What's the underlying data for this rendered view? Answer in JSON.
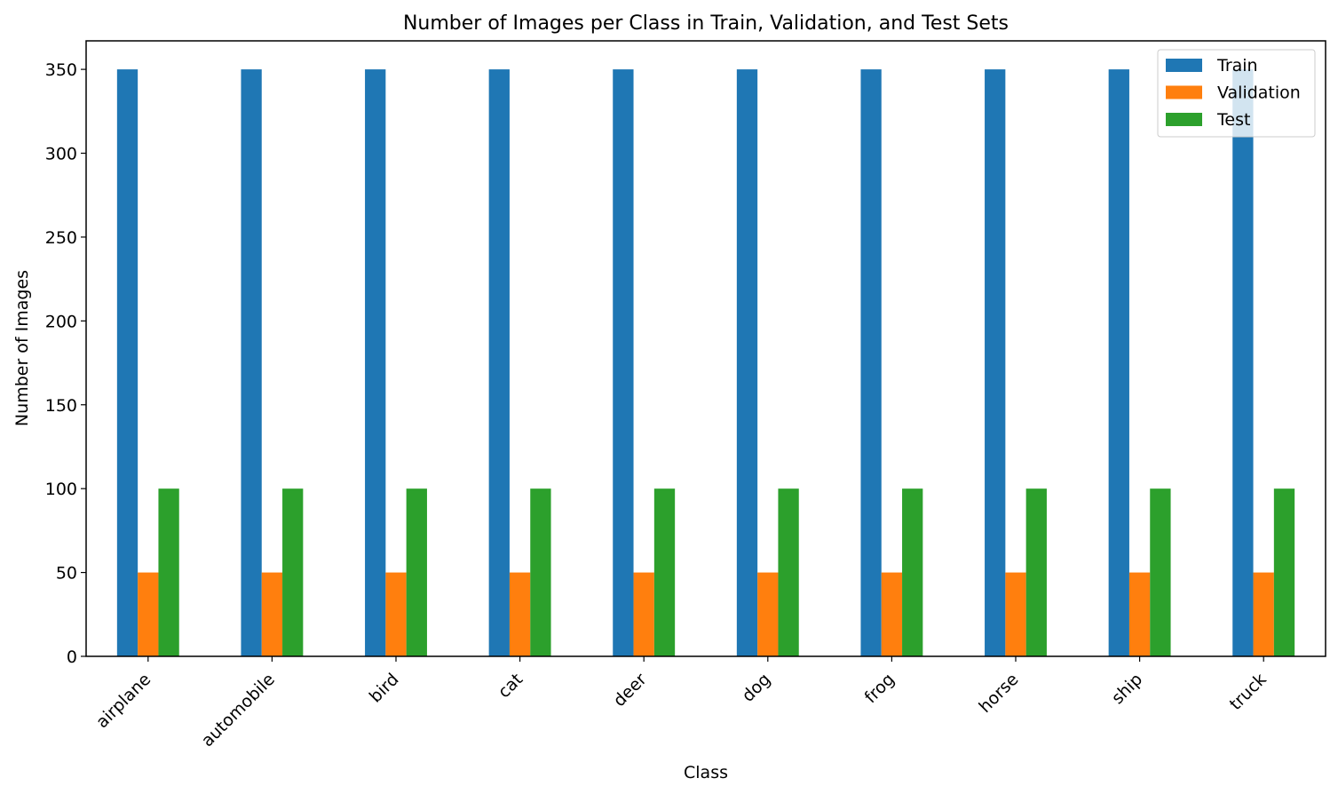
{
  "chart_data": {
    "type": "bar",
    "title": "Number of Images per Class in Train, Validation, and Test Sets",
    "xlabel": "Class",
    "ylabel": "Number of Images",
    "categories": [
      "airplane",
      "automobile",
      "bird",
      "cat",
      "deer",
      "dog",
      "frog",
      "horse",
      "ship",
      "truck"
    ],
    "series": [
      {
        "name": "Train",
        "color": "#1f77b4",
        "values": [
          350,
          350,
          350,
          350,
          350,
          350,
          350,
          350,
          350,
          350
        ]
      },
      {
        "name": "Validation",
        "color": "#ff7f0e",
        "values": [
          50,
          50,
          50,
          50,
          50,
          50,
          50,
          50,
          50,
          50
        ]
      },
      {
        "name": "Test",
        "color": "#2ca02c",
        "values": [
          100,
          100,
          100,
          100,
          100,
          100,
          100,
          100,
          100,
          100
        ]
      }
    ],
    "ylim": [
      0,
      367
    ],
    "yticks": [
      0,
      50,
      100,
      150,
      200,
      250,
      300,
      350
    ],
    "grid": false,
    "legend": "top-right",
    "x_tick_rotation": 45
  }
}
